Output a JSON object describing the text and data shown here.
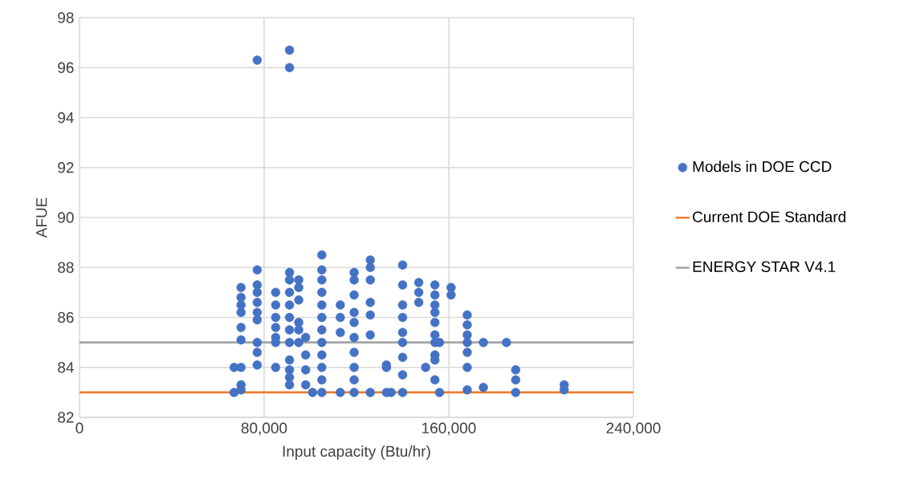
{
  "chart_data": {
    "type": "scatter",
    "xlabel": "Input capacity (Btu/hr)",
    "ylabel": "AFUE",
    "xlim": [
      0,
      240000
    ],
    "xticks": [
      0,
      {
        "value": 80000,
        "label": "80,000"
      },
      {
        "value": 160000,
        "label": "160,000"
      },
      {
        "value": 240000,
        "label": "240,000"
      }
    ],
    "ylim": [
      82,
      98
    ],
    "yticks": [
      82,
      84,
      86,
      88,
      90,
      92,
      94,
      96,
      98
    ],
    "grid": true,
    "legend": "right",
    "series": [
      {
        "name": "Models in DOE CCD",
        "color": "#4472c4",
        "marker": "circle",
        "x": [
          67000,
          67000,
          70000,
          70000,
          70000,
          70000,
          70000,
          70000,
          70000,
          70000,
          70000,
          77000,
          77000,
          77000,
          77000,
          77000,
          77000,
          77000,
          77000,
          77000,
          77000,
          85000,
          85000,
          85000,
          85000,
          85000,
          85000,
          85000,
          91000,
          91000,
          91000,
          91000,
          91000,
          91000,
          91000,
          91000,
          91000,
          91000,
          91000,
          91000,
          91000,
          95000,
          95000,
          95000,
          95000,
          95000,
          95000,
          98000,
          98000,
          98000,
          98000,
          101000,
          105000,
          105000,
          105000,
          105000,
          105000,
          105000,
          105000,
          105000,
          105000,
          105000,
          105000,
          105000,
          113000,
          113000,
          113000,
          113000,
          119000,
          119000,
          119000,
          119000,
          119000,
          119000,
          119000,
          119000,
          119000,
          119000,
          126000,
          126000,
          126000,
          126000,
          126000,
          126000,
          126000,
          133000,
          133000,
          133000,
          135000,
          140000,
          140000,
          140000,
          140000,
          140000,
          140000,
          140000,
          140000,
          140000,
          147000,
          147000,
          147000,
          150000,
          154000,
          154000,
          154000,
          154000,
          154000,
          154000,
          154000,
          154000,
          154000,
          154000,
          156000,
          156000,
          161000,
          161000,
          168000,
          168000,
          168000,
          168000,
          168000,
          168000,
          168000,
          175000,
          175000,
          185000,
          189000,
          189000,
          189000,
          210000,
          210000
        ],
        "values": [
          84.0,
          83.0,
          87.2,
          86.8,
          86.5,
          86.2,
          85.6,
          85.1,
          84.0,
          83.3,
          83.1,
          96.3,
          87.9,
          87.3,
          87.0,
          86.6,
          86.2,
          85.9,
          85.0,
          84.6,
          84.1,
          87.0,
          86.5,
          86.0,
          85.6,
          85.2,
          85.0,
          84.0,
          96.7,
          96.0,
          87.8,
          87.5,
          87.0,
          86.5,
          86.0,
          85.5,
          85.0,
          84.3,
          83.9,
          83.6,
          83.3,
          87.5,
          87.2,
          86.7,
          85.8,
          85.5,
          85.0,
          85.2,
          84.5,
          83.9,
          83.3,
          83.0,
          88.5,
          87.9,
          87.5,
          87.0,
          86.5,
          86.0,
          85.5,
          85.0,
          84.5,
          84.0,
          83.5,
          83.0,
          86.5,
          86.0,
          85.4,
          83.0,
          87.8,
          87.5,
          86.9,
          86.2,
          85.8,
          85.2,
          84.6,
          84.0,
          83.5,
          83.0,
          88.3,
          88.0,
          87.5,
          86.6,
          86.1,
          85.3,
          83.0,
          84.1,
          84.0,
          83.0,
          83.0,
          88.1,
          87.3,
          86.5,
          86.0,
          85.4,
          85.0,
          84.4,
          83.7,
          83.0,
          87.4,
          87.0,
          86.6,
          84.0,
          87.3,
          86.9,
          86.5,
          86.2,
          85.8,
          85.3,
          85.0,
          84.5,
          84.3,
          83.5,
          85.0,
          83.0,
          87.2,
          86.9,
          86.1,
          85.7,
          85.3,
          85.0,
          84.6,
          84.0,
          83.1,
          85.0,
          83.2,
          85.0,
          83.9,
          83.5,
          83.0,
          83.3,
          83.1
        ]
      },
      {
        "name": "Current DOE Standard",
        "type": "line",
        "marker": "none",
        "color": "#ed7d31",
        "x": [
          0,
          240000
        ],
        "values": [
          83,
          83
        ]
      },
      {
        "name": "ENERGY STAR V4.1",
        "type": "line",
        "marker": "none",
        "color": "#a5a5a5",
        "x": [
          0,
          240000
        ],
        "values": [
          85,
          85
        ]
      }
    ]
  }
}
